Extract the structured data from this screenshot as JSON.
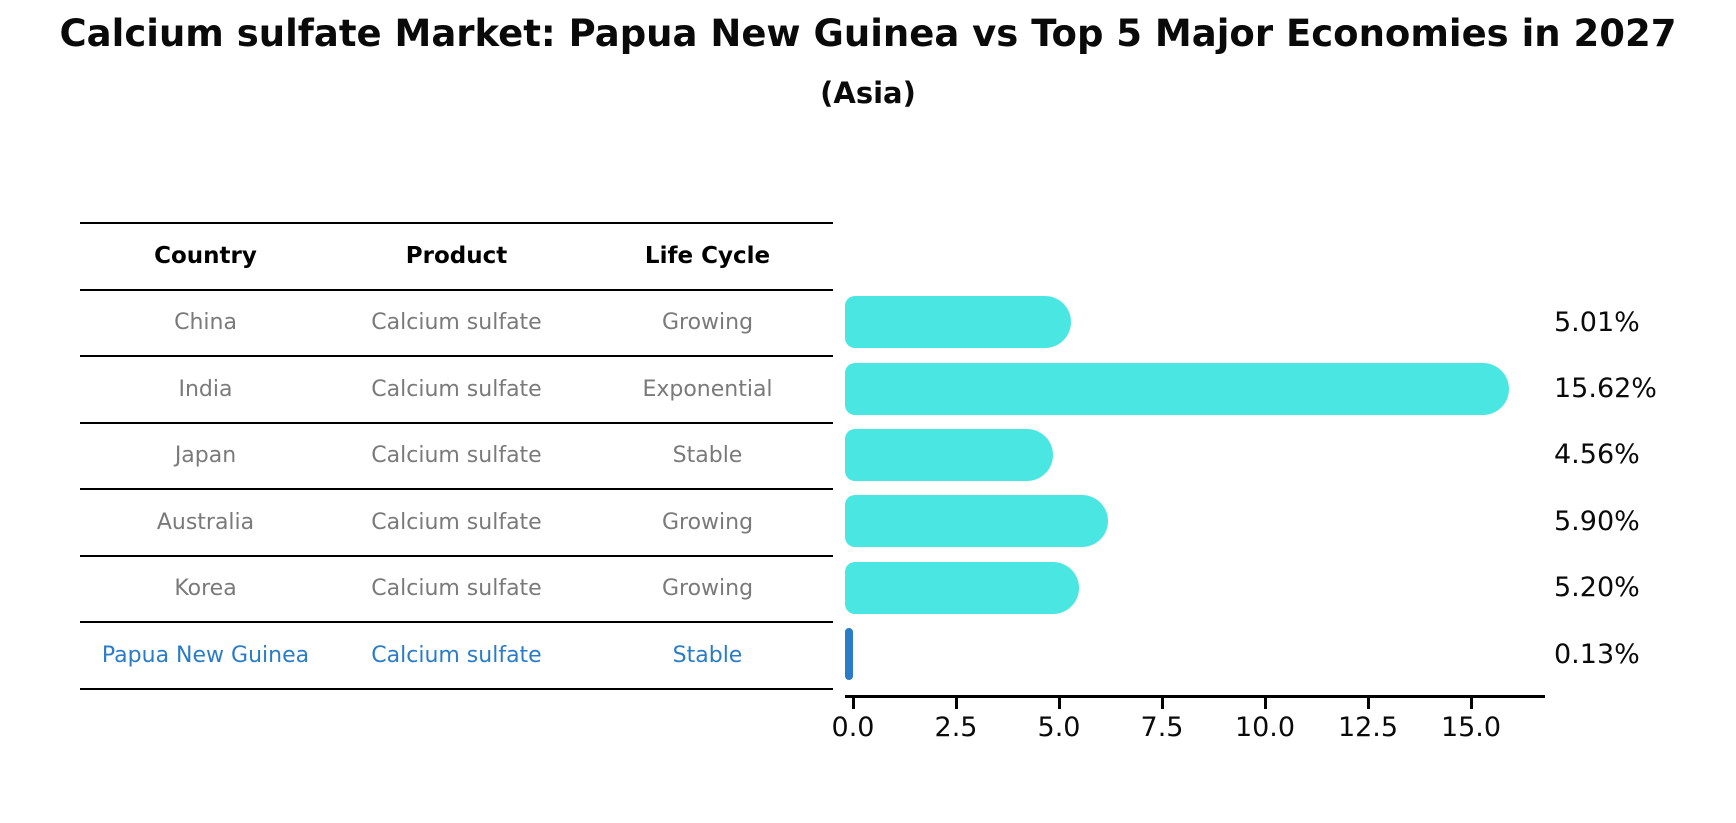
{
  "title": "Calcium sulfate Market: Papua New Guinea vs Top 5 Major Economies in 2027",
  "subtitle": "(Asia)",
  "table": {
    "headers": {
      "country": "Country",
      "product": "Product",
      "life_cycle": "Life Cycle"
    },
    "rows": [
      {
        "country": "China",
        "product": "Calcium sulfate",
        "life_cycle": "Growing"
      },
      {
        "country": "India",
        "product": "Calcium sulfate",
        "life_cycle": "Exponential"
      },
      {
        "country": "Japan",
        "product": "Calcium sulfate",
        "life_cycle": "Stable"
      },
      {
        "country": "Australia",
        "product": "Calcium sulfate",
        "life_cycle": "Growing"
      },
      {
        "country": "Korea",
        "product": "Calcium sulfate",
        "life_cycle": "Growing"
      },
      {
        "country": "Papua New Guinea",
        "product": "Calcium sulfate",
        "life_cycle": "Stable"
      }
    ]
  },
  "chart_data": {
    "type": "bar",
    "orientation": "horizontal",
    "title": "Calcium sulfate Market: Papua New Guinea vs Top 5 Major Economies in 2027 (Asia)",
    "categories": [
      "China",
      "India",
      "Japan",
      "Australia",
      "Korea",
      "Papua New Guinea"
    ],
    "values": [
      5.01,
      15.62,
      4.56,
      5.9,
      5.2,
      0.13
    ],
    "value_labels": [
      "5.01%",
      "15.62%",
      "4.56%",
      "5.90%",
      "5.20%",
      "0.13%"
    ],
    "unit": "%",
    "xlim": [
      0,
      17
    ],
    "xticks": [
      0.0,
      2.5,
      5.0,
      7.5,
      10.0,
      12.5,
      15.0
    ],
    "xtick_labels": [
      "0.0",
      "2.5",
      "5.0",
      "7.5",
      "10.0",
      "12.5",
      "15.0"
    ],
    "grid": false,
    "legend": false,
    "bar_color": "#4AE7E2",
    "highlight_color": "#2A7CC9",
    "highlight_index": 5
  }
}
